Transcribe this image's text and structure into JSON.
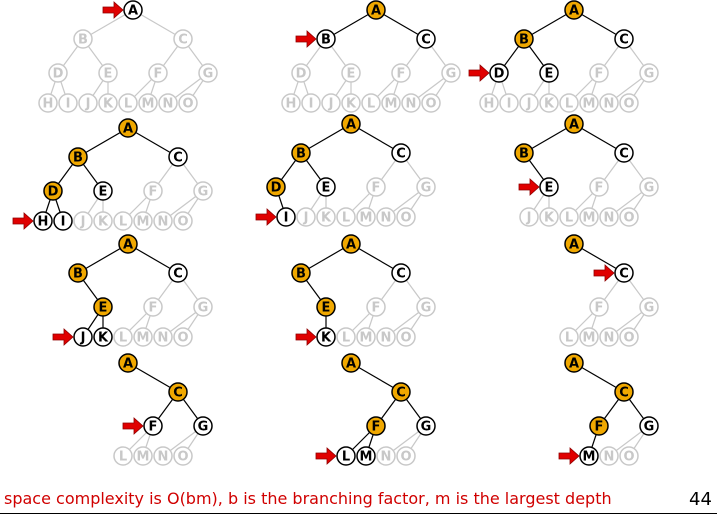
{
  "caption": "space complexity is O(bm), b is the branching factor, m is the largest depth",
  "page_number": "44",
  "colors": {
    "visited_fill": "#f0a800",
    "current_fill": "#ffffff",
    "faded": "#c8c8c8",
    "arrow": "#e00000",
    "caption": "#d00000"
  },
  "panels": [
    {
      "nodes": {
        "A": "current",
        "B": "faded",
        "C": "faded",
        "D": "faded",
        "E": "faded",
        "F": "faded",
        "G": "faded",
        "H": "faded",
        "I": "faded",
        "J": "faded",
        "K": "faded",
        "L": "faded",
        "M": "faded",
        "N": "faded",
        "O": "faded"
      },
      "pointer": "A"
    },
    {
      "nodes": {
        "A": "visited",
        "B": "current",
        "C": "current",
        "D": "faded",
        "E": "faded",
        "F": "faded",
        "G": "faded",
        "H": "faded",
        "I": "faded",
        "J": "faded",
        "K": "faded",
        "L": "faded",
        "M": "faded",
        "N": "faded",
        "O": "faded"
      },
      "pointer": "B"
    },
    {
      "nodes": {
        "A": "visited",
        "B": "visited",
        "C": "current",
        "D": "current",
        "E": "current",
        "F": "faded",
        "G": "faded",
        "H": "faded",
        "I": "faded",
        "J": "faded",
        "K": "faded",
        "L": "faded",
        "M": "faded",
        "N": "faded",
        "O": "faded"
      },
      "pointer": "D"
    },
    {
      "nodes": {
        "A": "visited",
        "B": "visited",
        "C": "current",
        "D": "visited",
        "E": "current",
        "F": "faded",
        "G": "faded",
        "H": "current",
        "I": "current",
        "J": "faded",
        "K": "faded",
        "L": "faded",
        "M": "faded",
        "N": "faded",
        "O": "faded"
      },
      "pointer": "H"
    },
    {
      "nodes": {
        "A": "visited",
        "B": "visited",
        "C": "current",
        "D": "visited",
        "E": "current",
        "F": "faded",
        "G": "faded",
        "I": "current",
        "J": "faded",
        "K": "faded",
        "L": "faded",
        "M": "faded",
        "N": "faded",
        "O": "faded"
      },
      "pointer": "I"
    },
    {
      "nodes": {
        "A": "visited",
        "B": "visited",
        "C": "current",
        "E": "current",
        "F": "faded",
        "G": "faded",
        "J": "faded",
        "K": "faded",
        "L": "faded",
        "M": "faded",
        "N": "faded",
        "O": "faded"
      },
      "pointer": "E"
    },
    {
      "nodes": {
        "A": "visited",
        "B": "visited",
        "C": "current",
        "E": "visited",
        "F": "faded",
        "G": "faded",
        "J": "current",
        "K": "current",
        "L": "faded",
        "M": "faded",
        "N": "faded",
        "O": "faded"
      },
      "pointer": "J"
    },
    {
      "nodes": {
        "A": "visited",
        "B": "visited",
        "C": "current",
        "E": "visited",
        "F": "faded",
        "G": "faded",
        "K": "current",
        "L": "faded",
        "M": "faded",
        "N": "faded",
        "O": "faded"
      },
      "pointer": "K"
    },
    {
      "nodes": {
        "A": "visited",
        "C": "current",
        "F": "faded",
        "G": "faded",
        "L": "faded",
        "M": "faded",
        "N": "faded",
        "O": "faded"
      },
      "pointer": "C"
    },
    {
      "nodes": {
        "A": "visited",
        "C": "visited",
        "F": "current",
        "G": "current",
        "L": "faded",
        "M": "faded",
        "N": "faded",
        "O": "faded"
      },
      "pointer": "F"
    },
    {
      "nodes": {
        "A": "visited",
        "C": "visited",
        "F": "visited",
        "G": "current",
        "L": "current",
        "M": "current",
        "N": "faded",
        "O": "faded"
      },
      "pointer": "L"
    },
    {
      "nodes": {
        "A": "visited",
        "C": "visited",
        "F": "visited",
        "G": "current",
        "M": "current",
        "N": "faded",
        "O": "faded"
      },
      "pointer": "M"
    }
  ]
}
